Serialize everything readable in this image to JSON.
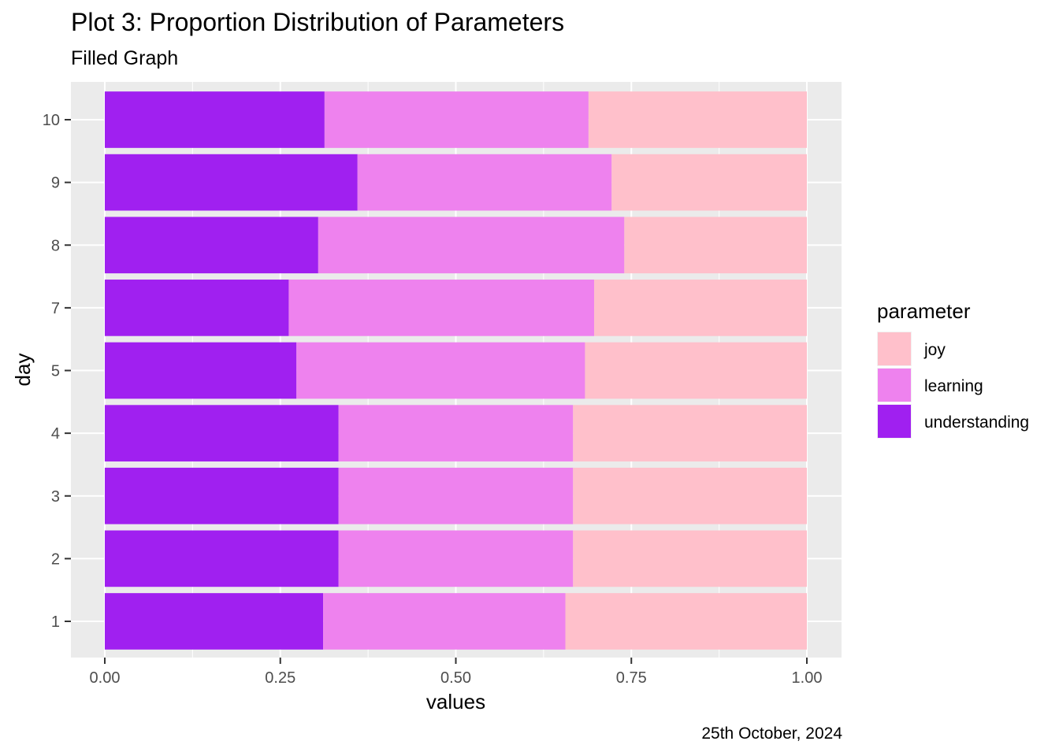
{
  "title": "Plot 3: Proportion Distribution of Parameters",
  "subtitle": "Filled Graph",
  "caption": "25th October, 2024",
  "legend": {
    "title": "parameter",
    "items": [
      {
        "label": "joy",
        "color": "#FFC0CB"
      },
      {
        "label": "learning",
        "color": "#EE82EE"
      },
      {
        "label": "understanding",
        "color": "#A020F0"
      }
    ]
  },
  "chart_data": {
    "type": "bar",
    "orientation": "horizontal",
    "position": "fill",
    "title": "Plot 3: Proportion Distribution of Parameters",
    "subtitle": "Filled Graph",
    "xlabel": "values",
    "ylabel": "day",
    "xlim": [
      0,
      1
    ],
    "x_ticks": [
      "0.00",
      "0.25",
      "0.50",
      "0.75",
      "1.00"
    ],
    "categories": [
      "1",
      "2",
      "3",
      "4",
      "5",
      "7",
      "8",
      "9",
      "10"
    ],
    "series": [
      {
        "name": "understanding",
        "color": "#A020F0",
        "values": [
          0.311,
          0.333,
          0.333,
          0.333,
          0.273,
          0.262,
          0.304,
          0.36,
          0.313
        ]
      },
      {
        "name": "learning",
        "color": "#EE82EE",
        "values": [
          0.345,
          0.334,
          0.334,
          0.334,
          0.411,
          0.435,
          0.436,
          0.362,
          0.376
        ]
      },
      {
        "name": "joy",
        "color": "#FFC0CB",
        "values": [
          0.344,
          0.333,
          0.333,
          0.333,
          0.316,
          0.303,
          0.26,
          0.278,
          0.311
        ]
      }
    ],
    "panel_background": "#EBEBEB",
    "grid": true,
    "legend_position": "right"
  }
}
